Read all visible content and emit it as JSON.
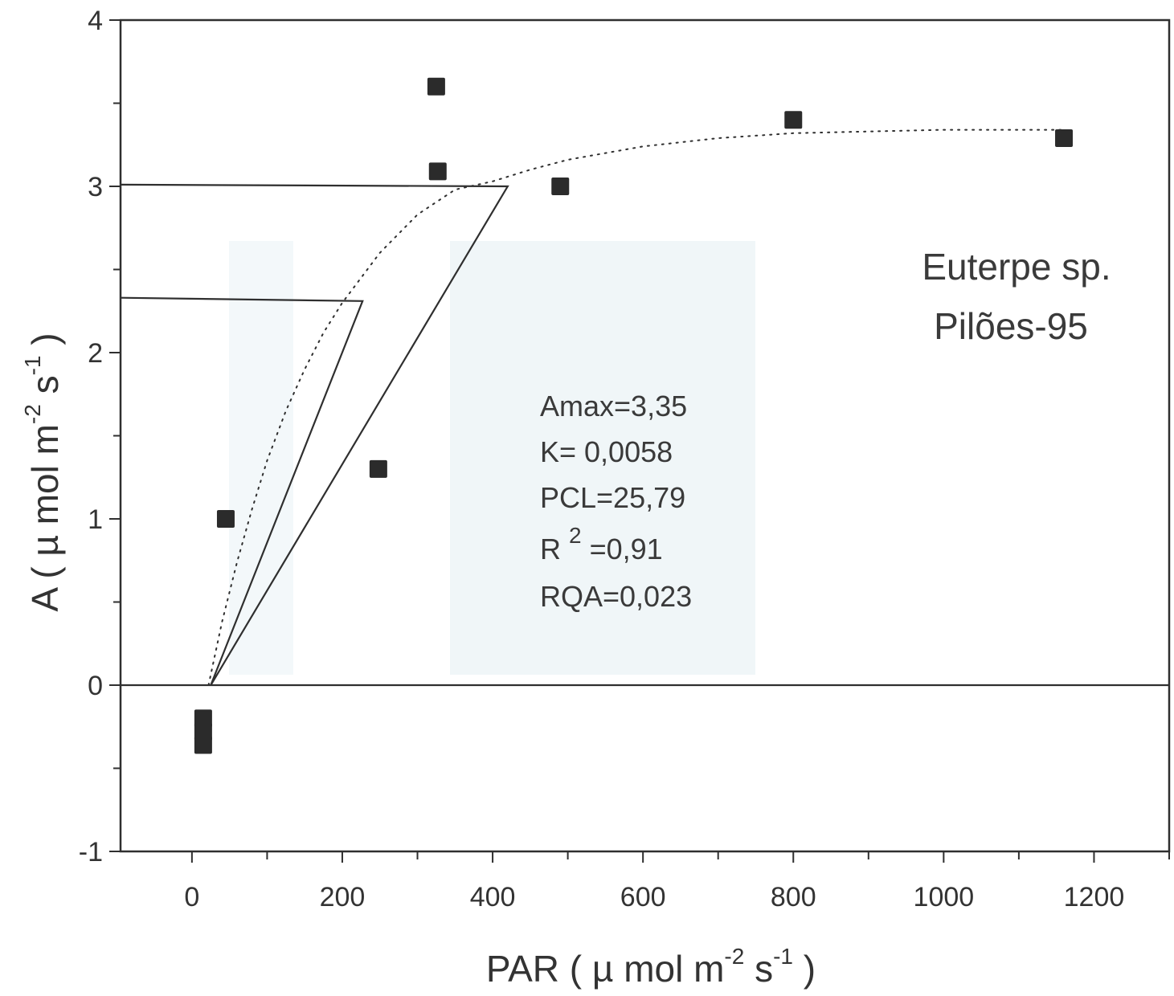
{
  "chart_data": {
    "type": "scatter",
    "title": "",
    "xlabel": {
      "prefix": "PAR ( µ mol m",
      "sup1": "-2",
      "mid": " s",
      "sup2": "-1",
      "suffix": " )"
    },
    "ylabel": {
      "prefix": "A ( µ mol m",
      "sup1": "-2",
      "mid": " s",
      "sup2": "-1",
      "suffix": " )"
    },
    "xlim": [
      -95,
      1300
    ],
    "ylim": [
      -1,
      4
    ],
    "x_ticks": [
      0,
      200,
      400,
      600,
      800,
      1000,
      1200
    ],
    "x_minor_ticks": [
      100,
      300,
      500,
      700,
      900,
      1100,
      1300
    ],
    "y_ticks": [
      -1,
      0,
      1,
      2,
      3,
      4
    ],
    "y_minor_ticks": [
      -0.5,
      0.5,
      1.5,
      2.5,
      3.5
    ],
    "grid": false,
    "points": [
      {
        "x": 15,
        "y": -0.2
      },
      {
        "x": 15,
        "y": -0.28
      },
      {
        "x": 15,
        "y": -0.36
      },
      {
        "x": 45,
        "y": 1.0
      },
      {
        "x": 248,
        "y": 1.3
      },
      {
        "x": 325,
        "y": 3.6
      },
      {
        "x": 327,
        "y": 3.09
      },
      {
        "x": 490,
        "y": 3.0
      },
      {
        "x": 800,
        "y": 3.4
      },
      {
        "x": 1160,
        "y": 3.29
      }
    ],
    "fitted_curve": {
      "style": "dotted",
      "x": [
        22,
        40,
        60,
        80,
        100,
        125,
        150,
        175,
        200,
        250,
        300,
        350,
        400,
        450,
        500,
        600,
        700,
        800,
        900,
        1000,
        1100,
        1160
      ],
      "y": [
        0.0,
        0.38,
        0.74,
        1.06,
        1.35,
        1.65,
        1.9,
        2.12,
        2.3,
        2.6,
        2.83,
        2.98,
        3.03,
        3.1,
        3.16,
        3.24,
        3.29,
        3.32,
        3.33,
        3.34,
        3.34,
        3.34
      ]
    },
    "reference_lines": [
      {
        "x": [
          -95,
          227,
          25
        ],
        "y": [
          2.33,
          2.31,
          0.0
        ]
      },
      {
        "x": [
          -95,
          420,
          25
        ],
        "y": [
          3.01,
          3.0,
          0.0
        ]
      },
      {
        "x": [
          -95,
          1300
        ],
        "y": [
          0.0,
          0.0
        ]
      }
    ],
    "legend_text": {
      "species": "Euterpe sp.",
      "site": "Pilões-95"
    },
    "annotations": {
      "amax": "Amax=3,35",
      "k": "K= 0,0058",
      "pcl": "PCL=25,79",
      "r2_base": "R",
      "r2_sup": "2",
      "r2_value": " =0,91",
      "rqa": "RQA=0,023"
    },
    "colors": {
      "ink": "#2f2f2f",
      "marker": "#2b2b2b",
      "watermark": "#eef5f7"
    }
  }
}
